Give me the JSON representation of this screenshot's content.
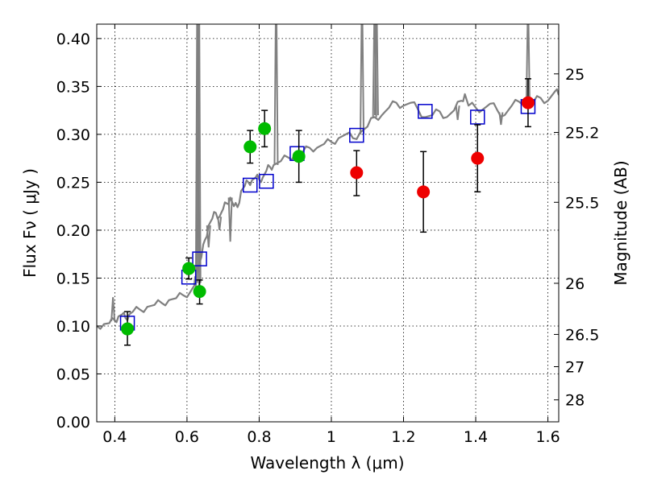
{
  "chart_data": {
    "type": "scatter",
    "xlabel": "Wavelength  λ (μm)",
    "ylabel": "Flux  Fν  ( μJy )",
    "y2label": "Magnitude (AB)",
    "xlim": [
      0.35,
      1.63
    ],
    "ylim": [
      0.0,
      0.415
    ],
    "grid": true,
    "x_ticks": [
      "0.4",
      "0.6",
      "0.8",
      "1",
      "1.2",
      "1.4",
      "1.6"
    ],
    "x_tick_values": [
      0.4,
      0.6,
      0.8,
      1.0,
      1.2,
      1.4,
      1.6
    ],
    "y_ticks": [
      "0.00",
      "0.05",
      "0.10",
      "0.15",
      "0.20",
      "0.25",
      "0.30",
      "0.35",
      "0.40"
    ],
    "y_tick_values": [
      0.0,
      0.05,
      0.1,
      0.15,
      0.2,
      0.25,
      0.3,
      0.35,
      0.4
    ],
    "y2_ticks": [
      {
        "label": "25",
        "mag": 25.0
      },
      {
        "label": "25.2",
        "mag": 25.2
      },
      {
        "label": "25.5",
        "mag": 25.5
      },
      {
        "label": "26",
        "mag": 26.0
      },
      {
        "label": "26.5",
        "mag": 26.5
      },
      {
        "label": "27",
        "mag": 27.0
      },
      {
        "label": "28",
        "mag": 28.0
      }
    ],
    "colors": {
      "spectrum": "#808080",
      "green_points": "#00bb00",
      "red_points": "#ee0000",
      "model_boxes": "#0000cc",
      "errorbars": "#000000"
    },
    "series": [
      {
        "kind": "spectrum",
        "points": [
          [
            0.35,
            0.1
          ],
          [
            0.37,
            0.102
          ],
          [
            0.385,
            0.103
          ],
          [
            0.4,
            0.106
          ],
          [
            0.41,
            0.11
          ],
          [
            0.42,
            0.112
          ],
          [
            0.43,
            0.108
          ],
          [
            0.44,
            0.112
          ],
          [
            0.45,
            0.115
          ],
          [
            0.47,
            0.117
          ],
          [
            0.49,
            0.12
          ],
          [
            0.51,
            0.122
          ],
          [
            0.53,
            0.124
          ],
          [
            0.55,
            0.127
          ],
          [
            0.57,
            0.129
          ],
          [
            0.59,
            0.132
          ],
          [
            0.61,
            0.136
          ],
          [
            0.62,
            0.142
          ],
          [
            0.625,
            0.152
          ],
          [
            0.63,
            0.16
          ],
          [
            0.64,
            0.172
          ],
          [
            0.65,
            0.19
          ],
          [
            0.66,
            0.205
          ],
          [
            0.67,
            0.212
          ],
          [
            0.68,
            0.218
          ],
          [
            0.69,
            0.214
          ],
          [
            0.7,
            0.222
          ],
          [
            0.71,
            0.228
          ],
          [
            0.72,
            0.234
          ],
          [
            0.73,
            0.225
          ],
          [
            0.74,
            0.224
          ],
          [
            0.75,
            0.241
          ],
          [
            0.76,
            0.246
          ],
          [
            0.77,
            0.25
          ],
          [
            0.78,
            0.252
          ],
          [
            0.79,
            0.255
          ],
          [
            0.8,
            0.253
          ],
          [
            0.81,
            0.255
          ],
          [
            0.82,
            0.262
          ],
          [
            0.83,
            0.266
          ],
          [
            0.84,
            0.268
          ],
          [
            0.86,
            0.272
          ],
          [
            0.88,
            0.276
          ],
          [
            0.9,
            0.279
          ],
          [
            0.92,
            0.281
          ],
          [
            0.94,
            0.286
          ],
          [
            0.96,
            0.286
          ],
          [
            0.98,
            0.29
          ],
          [
            1.0,
            0.292
          ],
          [
            1.02,
            0.296
          ],
          [
            1.04,
            0.3
          ],
          [
            1.06,
            0.296
          ],
          [
            1.08,
            0.302
          ],
          [
            1.1,
            0.308
          ],
          [
            1.12,
            0.318
          ],
          [
            1.14,
            0.32
          ],
          [
            1.16,
            0.328
          ],
          [
            1.18,
            0.333
          ],
          [
            1.2,
            0.33
          ],
          [
            1.22,
            0.333
          ],
          [
            1.24,
            0.326
          ],
          [
            1.26,
            0.318
          ],
          [
            1.28,
            0.32
          ],
          [
            1.3,
            0.324
          ],
          [
            1.32,
            0.318
          ],
          [
            1.34,
            0.325
          ],
          [
            1.36,
            0.335
          ],
          [
            1.37,
            0.342
          ],
          [
            1.38,
            0.33
          ],
          [
            1.4,
            0.328
          ],
          [
            1.42,
            0.326
          ],
          [
            1.44,
            0.332
          ],
          [
            1.46,
            0.325
          ],
          [
            1.48,
            0.32
          ],
          [
            1.5,
            0.33
          ],
          [
            1.52,
            0.334
          ],
          [
            1.54,
            0.336
          ],
          [
            1.56,
            0.334
          ],
          [
            1.58,
            0.338
          ],
          [
            1.6,
            0.335
          ],
          [
            1.62,
            0.345
          ],
          [
            1.63,
            0.341
          ]
        ]
      },
      {
        "kind": "model_boxes",
        "points": [
          [
            0.435,
            0.103
          ],
          [
            0.605,
            0.151
          ],
          [
            0.635,
            0.17
          ],
          [
            0.775,
            0.247
          ],
          [
            0.82,
            0.251
          ],
          [
            0.905,
            0.28
          ],
          [
            1.07,
            0.299
          ],
          [
            1.26,
            0.324
          ],
          [
            1.405,
            0.318
          ],
          [
            1.545,
            0.329
          ]
        ]
      },
      {
        "kind": "green_points",
        "points": [
          {
            "x": 0.435,
            "y": 0.097,
            "lo": 0.08,
            "hi": 0.115
          },
          {
            "x": 0.605,
            "y": 0.16,
            "lo": 0.149,
            "hi": 0.171
          },
          {
            "x": 0.635,
            "y": 0.136,
            "lo": 0.123,
            "hi": 0.148
          },
          {
            "x": 0.775,
            "y": 0.287,
            "lo": 0.27,
            "hi": 0.304
          },
          {
            "x": 0.815,
            "y": 0.306,
            "lo": 0.287,
            "hi": 0.325
          },
          {
            "x": 0.91,
            "y": 0.277,
            "lo": 0.25,
            "hi": 0.304
          }
        ]
      },
      {
        "kind": "red_points",
        "points": [
          {
            "x": 1.07,
            "y": 0.26,
            "lo": 0.236,
            "hi": 0.283
          },
          {
            "x": 1.255,
            "y": 0.24,
            "lo": 0.198,
            "hi": 0.282
          },
          {
            "x": 1.405,
            "y": 0.275,
            "lo": 0.24,
            "hi": 0.31
          },
          {
            "x": 1.545,
            "y": 0.333,
            "lo": 0.308,
            "hi": 0.358
          }
        ]
      }
    ],
    "emission_spikes": [
      {
        "x": 0.629,
        "base": 0.135
      },
      {
        "x": 0.633,
        "base": 0.145
      },
      {
        "x": 0.847,
        "base": 0.268
      },
      {
        "x": 1.085,
        "base": 0.3
      },
      {
        "x": 1.12,
        "base": 0.318
      },
      {
        "x": 1.125,
        "base": 0.32
      },
      {
        "x": 1.545,
        "base": 0.334
      }
    ],
    "absorption_dips": [
      {
        "x": 0.395,
        "base": 0.105,
        "tip": 0.13
      },
      {
        "x": 0.66,
        "base": 0.205,
        "tip": 0.182
      },
      {
        "x": 0.69,
        "base": 0.214,
        "tip": 0.2
      },
      {
        "x": 0.72,
        "base": 0.234,
        "tip": 0.188
      },
      {
        "x": 1.35,
        "base": 0.33,
        "tip": 0.315
      },
      {
        "x": 1.47,
        "base": 0.323,
        "tip": 0.31
      }
    ]
  }
}
